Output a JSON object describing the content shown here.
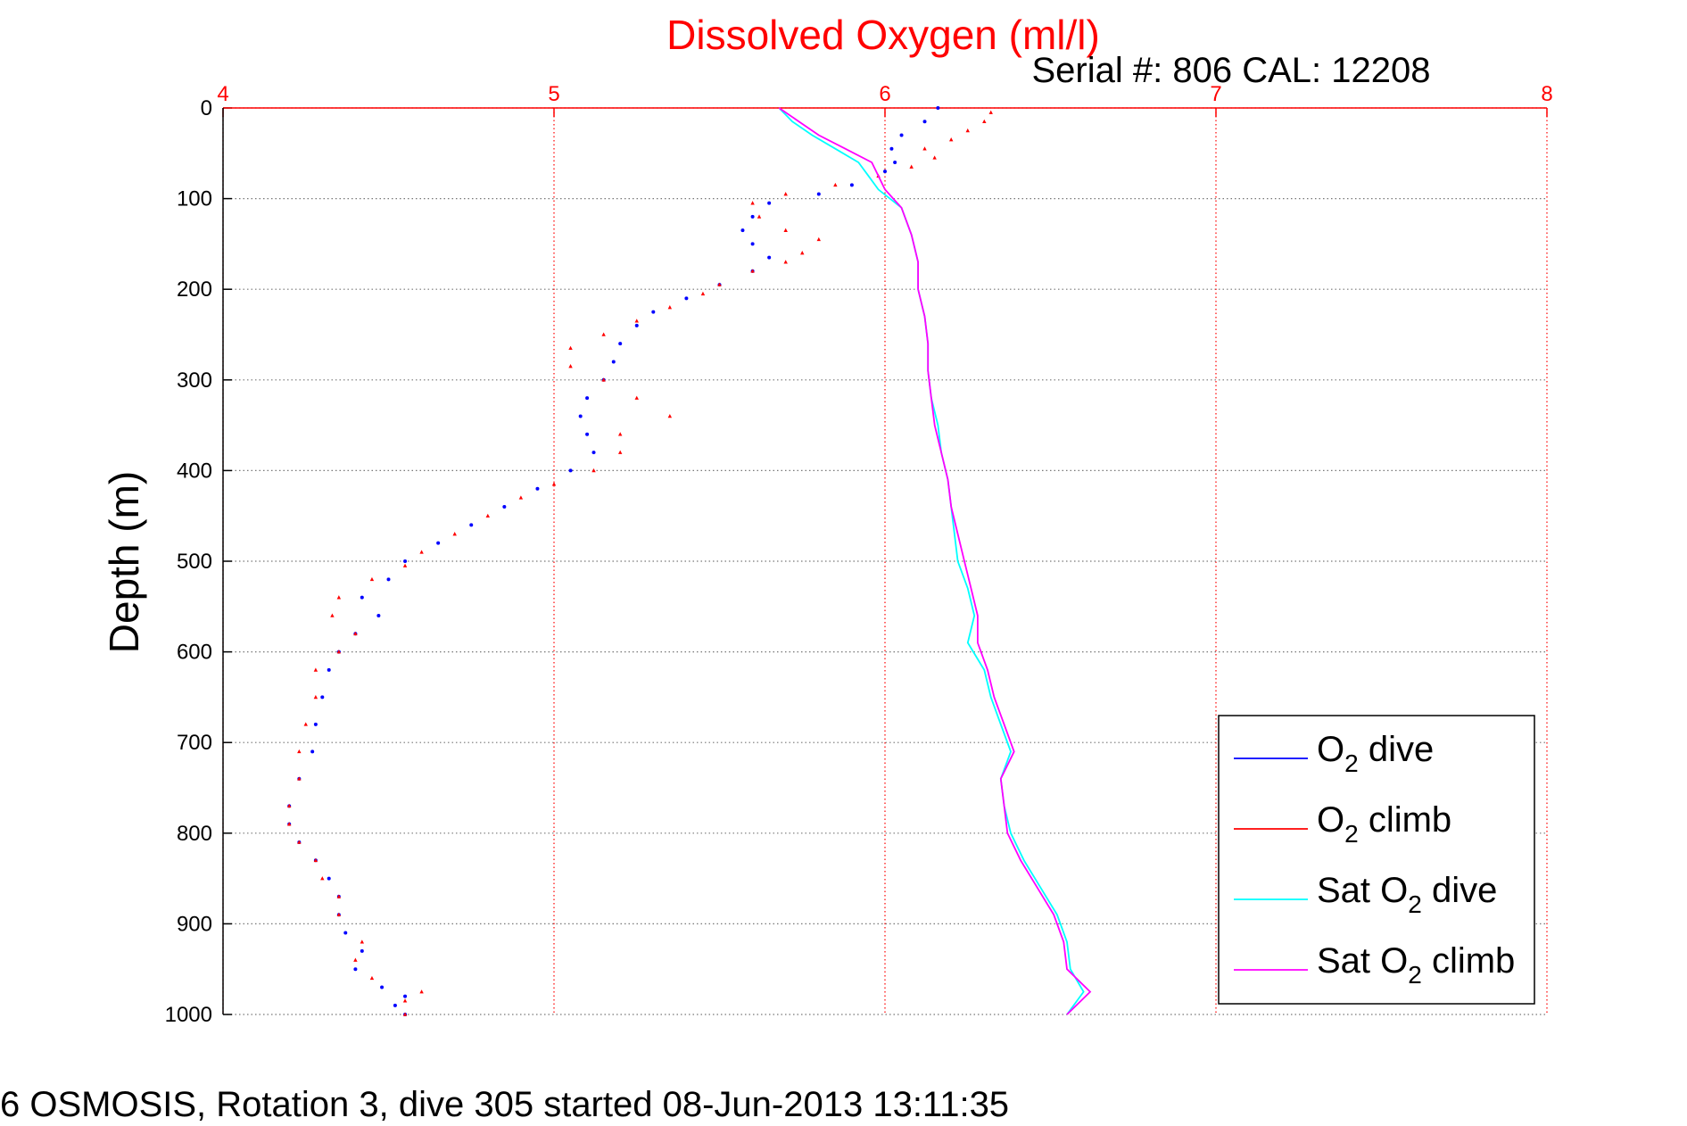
{
  "chart_data": {
    "type": "scatter",
    "title": "Dissolved Oxygen (ml/l)",
    "subtitle": "Serial #: 806  CAL: 12208",
    "footer": "6 OSMOSIS, Rotation 3, dive 305 started 08-Jun-2013 13:11:35",
    "ylabel": "Depth (m)",
    "xlim": [
      4,
      8
    ],
    "ylim": [
      0,
      1000
    ],
    "y_reversed": true,
    "x_axis_position": "top",
    "xticks": [
      "4",
      "5",
      "6",
      "7",
      "8"
    ],
    "yticks": [
      "0",
      "100",
      "200",
      "300",
      "400",
      "500",
      "600",
      "700",
      "800",
      "900",
      "1000"
    ],
    "grid": true,
    "legend_position": "bottom-right",
    "colors": {
      "axis": "#ff0000",
      "title": "#ff0000",
      "grid": "#777777"
    },
    "legend": [
      {
        "label": "O",
        "sub": "2",
        "suffix": " dive"
      },
      {
        "label": "O",
        "sub": "2",
        "suffix": " climb"
      },
      {
        "label": "Sat O",
        "sub": "2",
        "suffix": " dive"
      },
      {
        "label": "Sat O",
        "sub": "2",
        "suffix": " climb"
      }
    ],
    "series": [
      {
        "name": "O2 dive",
        "color": "#0000ff",
        "marker": "dot",
        "points": [
          [
            6.16,
            0
          ],
          [
            6.12,
            15
          ],
          [
            6.05,
            30
          ],
          [
            6.02,
            45
          ],
          [
            6.03,
            60
          ],
          [
            6.0,
            70
          ],
          [
            5.9,
            85
          ],
          [
            5.8,
            95
          ],
          [
            5.65,
            105
          ],
          [
            5.6,
            120
          ],
          [
            5.57,
            135
          ],
          [
            5.6,
            150
          ],
          [
            5.65,
            165
          ],
          [
            5.6,
            180
          ],
          [
            5.5,
            195
          ],
          [
            5.4,
            210
          ],
          [
            5.3,
            225
          ],
          [
            5.25,
            240
          ],
          [
            5.2,
            260
          ],
          [
            5.18,
            280
          ],
          [
            5.15,
            300
          ],
          [
            5.1,
            320
          ],
          [
            5.08,
            340
          ],
          [
            5.1,
            360
          ],
          [
            5.12,
            380
          ],
          [
            5.05,
            400
          ],
          [
            4.95,
            420
          ],
          [
            4.85,
            440
          ],
          [
            4.75,
            460
          ],
          [
            4.65,
            480
          ],
          [
            4.55,
            500
          ],
          [
            4.5,
            520
          ],
          [
            4.42,
            540
          ],
          [
            4.47,
            560
          ],
          [
            4.4,
            580
          ],
          [
            4.35,
            600
          ],
          [
            4.32,
            620
          ],
          [
            4.3,
            650
          ],
          [
            4.28,
            680
          ],
          [
            4.27,
            710
          ],
          [
            4.23,
            740
          ],
          [
            4.2,
            770
          ],
          [
            4.2,
            790
          ],
          [
            4.23,
            810
          ],
          [
            4.28,
            830
          ],
          [
            4.32,
            850
          ],
          [
            4.35,
            870
          ],
          [
            4.35,
            890
          ],
          [
            4.37,
            910
          ],
          [
            4.42,
            930
          ],
          [
            4.4,
            950
          ],
          [
            4.48,
            970
          ],
          [
            4.55,
            980
          ],
          [
            4.52,
            990
          ],
          [
            4.55,
            1000
          ]
        ]
      },
      {
        "name": "O2 climb",
        "color": "#ff0000",
        "marker": "triangle",
        "points": [
          [
            6.32,
            5
          ],
          [
            6.3,
            15
          ],
          [
            6.25,
            25
          ],
          [
            6.2,
            35
          ],
          [
            6.12,
            45
          ],
          [
            6.15,
            55
          ],
          [
            6.08,
            65
          ],
          [
            5.98,
            75
          ],
          [
            5.85,
            85
          ],
          [
            5.7,
            95
          ],
          [
            5.6,
            105
          ],
          [
            5.62,
            120
          ],
          [
            5.7,
            135
          ],
          [
            5.8,
            145
          ],
          [
            5.75,
            160
          ],
          [
            5.7,
            170
          ],
          [
            5.6,
            180
          ],
          [
            5.5,
            195
          ],
          [
            5.45,
            205
          ],
          [
            5.35,
            220
          ],
          [
            5.25,
            235
          ],
          [
            5.15,
            250
          ],
          [
            5.05,
            265
          ],
          [
            5.05,
            285
          ],
          [
            5.15,
            300
          ],
          [
            5.25,
            320
          ],
          [
            5.35,
            340
          ],
          [
            5.2,
            360
          ],
          [
            5.2,
            380
          ],
          [
            5.12,
            400
          ],
          [
            5.0,
            415
          ],
          [
            4.9,
            430
          ],
          [
            4.8,
            450
          ],
          [
            4.7,
            470
          ],
          [
            4.6,
            490
          ],
          [
            4.55,
            505
          ],
          [
            4.45,
            520
          ],
          [
            4.35,
            540
          ],
          [
            4.33,
            560
          ],
          [
            4.4,
            580
          ],
          [
            4.35,
            600
          ],
          [
            4.28,
            620
          ],
          [
            4.28,
            650
          ],
          [
            4.25,
            680
          ],
          [
            4.23,
            710
          ],
          [
            4.23,
            740
          ],
          [
            4.2,
            770
          ],
          [
            4.2,
            790
          ],
          [
            4.23,
            810
          ],
          [
            4.28,
            830
          ],
          [
            4.3,
            850
          ],
          [
            4.35,
            870
          ],
          [
            4.35,
            890
          ],
          [
            4.42,
            920
          ],
          [
            4.4,
            940
          ],
          [
            4.45,
            960
          ],
          [
            4.6,
            975
          ],
          [
            4.55,
            985
          ],
          [
            4.55,
            1000
          ]
        ]
      },
      {
        "name": "Sat O2 dive",
        "color": "#00ffff",
        "marker": "line",
        "points": [
          [
            5.68,
            0
          ],
          [
            5.72,
            15
          ],
          [
            5.78,
            30
          ],
          [
            5.85,
            45
          ],
          [
            5.92,
            60
          ],
          [
            5.95,
            75
          ],
          [
            5.98,
            90
          ],
          [
            6.05,
            110
          ],
          [
            6.08,
            140
          ],
          [
            6.1,
            170
          ],
          [
            6.1,
            200
          ],
          [
            6.12,
            230
          ],
          [
            6.13,
            260
          ],
          [
            6.13,
            290
          ],
          [
            6.14,
            320
          ],
          [
            6.16,
            350
          ],
          [
            6.17,
            380
          ],
          [
            6.19,
            410
          ],
          [
            6.2,
            440
          ],
          [
            6.21,
            470
          ],
          [
            6.22,
            500
          ],
          [
            6.25,
            530
          ],
          [
            6.27,
            560
          ],
          [
            6.25,
            590
          ],
          [
            6.3,
            620
          ],
          [
            6.32,
            650
          ],
          [
            6.35,
            680
          ],
          [
            6.38,
            710
          ],
          [
            6.35,
            740
          ],
          [
            6.36,
            770
          ],
          [
            6.38,
            800
          ],
          [
            6.42,
            830
          ],
          [
            6.47,
            860
          ],
          [
            6.52,
            890
          ],
          [
            6.55,
            920
          ],
          [
            6.56,
            950
          ],
          [
            6.6,
            975
          ],
          [
            6.55,
            1000
          ]
        ]
      },
      {
        "name": "Sat O2 climb",
        "color": "#ff00ff",
        "marker": "line",
        "points": [
          [
            5.68,
            0
          ],
          [
            5.74,
            15
          ],
          [
            5.8,
            30
          ],
          [
            5.88,
            45
          ],
          [
            5.96,
            60
          ],
          [
            5.98,
            75
          ],
          [
            6.0,
            90
          ],
          [
            6.05,
            110
          ],
          [
            6.08,
            140
          ],
          [
            6.1,
            170
          ],
          [
            6.1,
            200
          ],
          [
            6.12,
            230
          ],
          [
            6.13,
            260
          ],
          [
            6.13,
            290
          ],
          [
            6.14,
            320
          ],
          [
            6.15,
            350
          ],
          [
            6.17,
            380
          ],
          [
            6.19,
            410
          ],
          [
            6.2,
            440
          ],
          [
            6.22,
            470
          ],
          [
            6.24,
            500
          ],
          [
            6.26,
            530
          ],
          [
            6.28,
            560
          ],
          [
            6.28,
            590
          ],
          [
            6.31,
            620
          ],
          [
            6.33,
            650
          ],
          [
            6.36,
            680
          ],
          [
            6.39,
            710
          ],
          [
            6.35,
            740
          ],
          [
            6.36,
            770
          ],
          [
            6.37,
            800
          ],
          [
            6.41,
            830
          ],
          [
            6.46,
            860
          ],
          [
            6.51,
            890
          ],
          [
            6.54,
            920
          ],
          [
            6.55,
            950
          ],
          [
            6.62,
            975
          ],
          [
            6.55,
            1000
          ]
        ]
      }
    ]
  }
}
